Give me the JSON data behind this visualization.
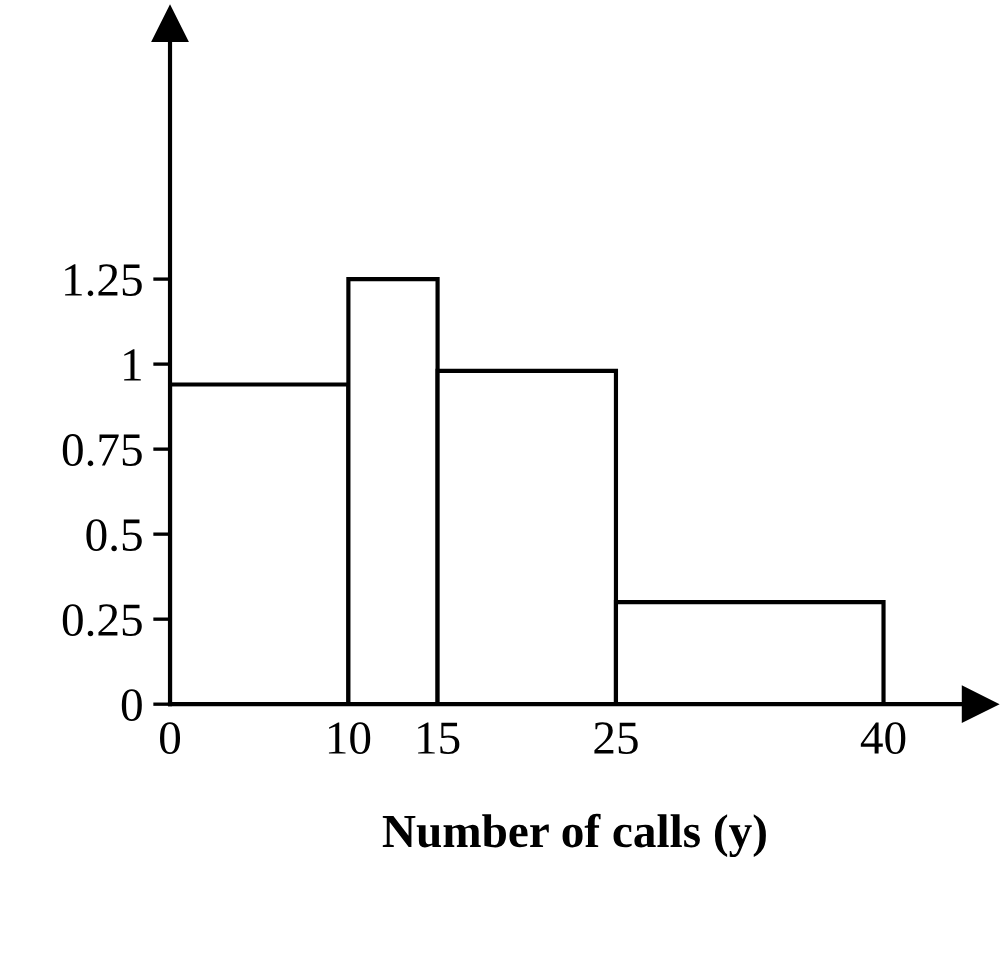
{
  "chart_data": {
    "type": "histogram",
    "xlabel": "Number of calls (y)",
    "bins": [
      0,
      10,
      15,
      25,
      40
    ],
    "values": [
      0.94,
      1.25,
      0.98,
      0.3
    ],
    "color": "#ffffff",
    "xlim": [
      0,
      45.4
    ],
    "ylim": [
      0,
      2.0
    ],
    "xticks": [
      0,
      10,
      15,
      25,
      40
    ],
    "yticks": [
      0,
      0.25,
      0.5,
      0.75,
      1,
      1.25
    ],
    "grid": false
  }
}
